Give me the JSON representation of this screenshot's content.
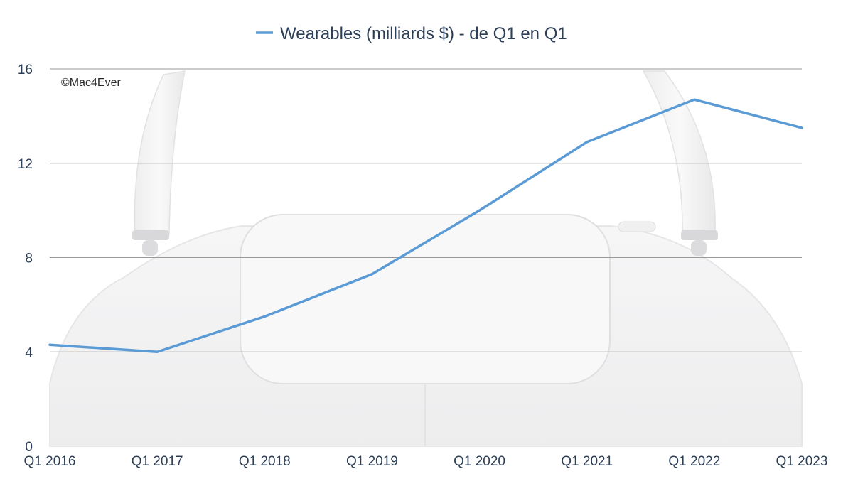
{
  "watermark": "©Mac4Ever",
  "chart_data": {
    "type": "line",
    "categories": [
      "Q1 2016",
      "Q1 2017",
      "Q1 2018",
      "Q1 2019",
      "Q1 2020",
      "Q1 2021",
      "Q1 2022",
      "Q1 2023"
    ],
    "series": [
      {
        "name": "Wearables (milliards $) - de Q1 en Q1",
        "values": [
          4.3,
          4.0,
          5.5,
          7.3,
          10.0,
          12.9,
          14.7,
          13.5
        ],
        "color": "#5b9bd5"
      }
    ],
    "yticks": [
      "0",
      "4",
      "8",
      "12",
      "16"
    ],
    "ylim": [
      0,
      16
    ],
    "grid": true,
    "legend_position": "top",
    "title": "",
    "xlabel": "",
    "ylabel": ""
  }
}
